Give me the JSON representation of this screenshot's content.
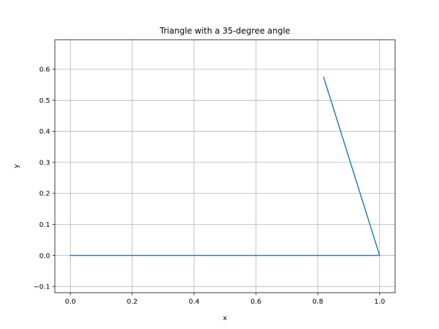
{
  "chart_data": {
    "type": "line",
    "title": "Triangle with a 35-degree angle",
    "xlabel": "x",
    "ylabel": "y",
    "xlim": [
      -0.05,
      1.05
    ],
    "ylim": [
      -0.12,
      0.695
    ],
    "xticks": [
      0.0,
      0.2,
      0.4,
      0.6,
      0.8,
      1.0
    ],
    "xtick_labels": [
      "0.0",
      "0.2",
      "0.4",
      "0.6",
      "0.8",
      "1.0"
    ],
    "yticks": [
      -0.1,
      0.0,
      0.1,
      0.2,
      0.3,
      0.4,
      0.5,
      0.6
    ],
    "ytick_labels": [
      "−0.1",
      "0.0",
      "0.1",
      "0.2",
      "0.3",
      "0.4",
      "0.5",
      "0.6"
    ],
    "grid": true,
    "series": [
      {
        "color": "#1f77b4",
        "x": [
          0.0,
          1.0,
          0.819
        ],
        "y": [
          0.0,
          0.0,
          0.574
        ]
      }
    ]
  }
}
